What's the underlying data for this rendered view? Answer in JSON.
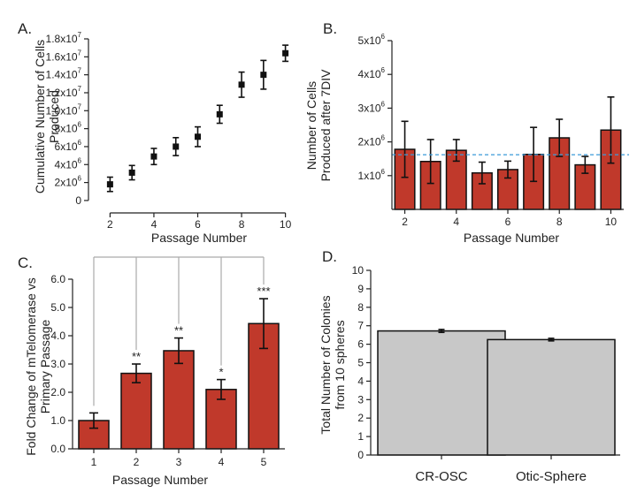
{
  "colors": {
    "bar": "#c0392b",
    "bar_gray": "#c8c8c8",
    "reference_line": "#3a9ad9",
    "bracket": "#aaaaaa"
  },
  "chart_data": [
    {
      "panel_label": "A.",
      "type": "scatter",
      "xlabel": "Passage Number",
      "ylabel": [
        "Cumulative Number of Cells",
        "Produced"
      ],
      "x": [
        2,
        3,
        4,
        5,
        6,
        7,
        8,
        9,
        10
      ],
      "y": [
        1800000.0,
        3100000.0,
        4900000.0,
        6000000.0,
        7100000.0,
        9600000.0,
        12900000.0,
        14000000.0,
        16400000.0
      ],
      "err": [
        800000.0,
        800000.0,
        900000.0,
        1000000.0,
        1100000.0,
        1000000.0,
        1400000.0,
        1600000.0,
        900000.0
      ],
      "xticks": [
        2,
        4,
        6,
        8,
        10
      ],
      "xlim": [
        1.5,
        10.5
      ],
      "ylim": [
        -500000.0,
        18000000.0
      ],
      "yticks": [
        {
          "v": 0,
          "base": "0",
          "exp": ""
        },
        {
          "v": 2000000.0,
          "base": "2x10",
          "exp": "6"
        },
        {
          "v": 4000000.0,
          "base": "4x10",
          "exp": "6"
        },
        {
          "v": 6000000.0,
          "base": "6x10",
          "exp": "6"
        },
        {
          "v": 8000000.0,
          "base": "8x10",
          "exp": "6"
        },
        {
          "v": 10000000.0,
          "base": "1.0x10",
          "exp": "7"
        },
        {
          "v": 12000000.0,
          "base": "1.2x10",
          "exp": "7"
        },
        {
          "v": 14000000.0,
          "base": "1.4x10",
          "exp": "7"
        },
        {
          "v": 16000000.0,
          "base": "1.6x10",
          "exp": "7"
        },
        {
          "v": 18000000.0,
          "base": "1.8x10",
          "exp": "7"
        }
      ],
      "grid": false
    },
    {
      "panel_label": "B.",
      "type": "bar",
      "xlabel": "Passage Number",
      "ylabel": [
        "Number of Cells",
        "Produced after 7DIV"
      ],
      "x": [
        2,
        3,
        4,
        5,
        6,
        7,
        8,
        9,
        10
      ],
      "values": [
        1780000.0,
        1420000.0,
        1750000.0,
        1080000.0,
        1180000.0,
        1630000.0,
        2120000.0,
        1320000.0,
        2350000.0
      ],
      "err": [
        830000.0,
        650000.0,
        320000.0,
        320000.0,
        250000.0,
        800000.0,
        550000.0,
        250000.0,
        980000.0
      ],
      "reference_line": 1620000.0,
      "xticks": [
        2,
        4,
        6,
        8,
        10
      ],
      "xlim": [
        1.5,
        10.5
      ],
      "ylim": [
        0,
        5000000.0
      ],
      "yticks": [
        {
          "v": 1000000.0,
          "base": "1x10",
          "exp": "6"
        },
        {
          "v": 2000000.0,
          "base": "2x10",
          "exp": "6"
        },
        {
          "v": 3000000.0,
          "base": "3x10",
          "exp": "6"
        },
        {
          "v": 4000000.0,
          "base": "4x10",
          "exp": "6"
        },
        {
          "v": 5000000.0,
          "base": "5x10",
          "exp": "6"
        }
      ],
      "grid": false
    },
    {
      "panel_label": "C.",
      "type": "bar",
      "xlabel": "Passage Number",
      "ylabel": [
        "Fold Change of mTelomerase vs",
        "Primary Passage"
      ],
      "categories": [
        "1",
        "2",
        "3",
        "4",
        "5"
      ],
      "values": [
        1.0,
        2.67,
        3.47,
        2.1,
        4.43
      ],
      "err": [
        0.27,
        0.33,
        0.45,
        0.35,
        0.88
      ],
      "significance": [
        "",
        "**",
        "**",
        "*",
        "***"
      ],
      "ylim": [
        0,
        6.0
      ],
      "yticks": [
        "0.0",
        "1.0",
        "2.0",
        "3.0",
        "4.0",
        "5.0",
        "6.0"
      ],
      "grid": false
    },
    {
      "panel_label": "D.",
      "type": "bar",
      "xlabel": "",
      "ylabel": [
        "Total Number of Colonies",
        "from 10 spheres"
      ],
      "categories": [
        "CR-OSC",
        "Otic-Sphere"
      ],
      "values": [
        6.72,
        6.25
      ],
      "err": [
        0.08,
        0.07
      ],
      "ylim": [
        0,
        10
      ],
      "yticks": [
        "0",
        "1",
        "2",
        "3",
        "4",
        "5",
        "6",
        "7",
        "8",
        "9",
        "10"
      ],
      "grid": false
    }
  ]
}
